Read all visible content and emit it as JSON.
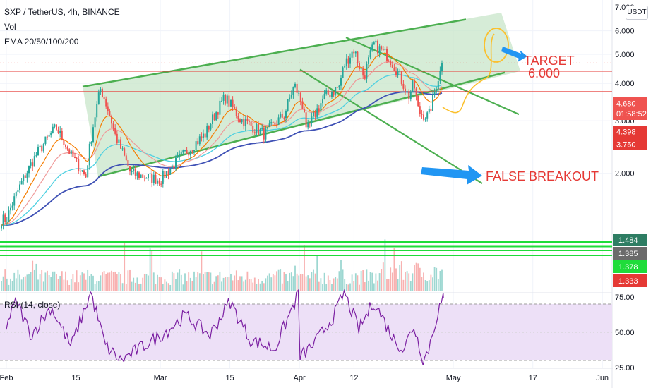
{
  "legend": {
    "symbol": "SXP / TetherUS, 4h, BINANCE",
    "vol": "Vol",
    "ema": "EMA 20/50/100/200",
    "rsi": "RSI (14, close)"
  },
  "currency_button": "USDT",
  "colors": {
    "up": "#26a69a",
    "down": "#ef5350",
    "channel": "#4caf50",
    "channel_fill": "#c8e6c9",
    "resistance": "#e53935",
    "ema20": "#f57c00",
    "ema50": "#ef9a9a",
    "ema100": "#4dd0e1",
    "ema200": "#3f51b5",
    "rsi_line": "#7b1fa2",
    "rsi_band": "#ede0f7",
    "arrow": "#2196f3",
    "annotation_text": "#e53935",
    "projection": "#fbc02d"
  },
  "chart_data": [
    {
      "type": "candlestick",
      "title": "SXP / TetherUS, 4h, BINANCE",
      "indicators": [
        "EMA 20",
        "EMA 50",
        "EMA 100",
        "EMA 200"
      ],
      "x_tick_labels": [
        "Feb",
        "15",
        "Mar",
        "15",
        "Apr",
        "12",
        "May",
        "17",
        "Jun"
      ],
      "y_tick_labels": [
        "2.000",
        "3.000",
        "4.000",
        "5.000",
        "6.000",
        "7.000"
      ],
      "y_axis": "log",
      "ylim": [
        1.55,
        7.1
      ],
      "close_path": [
        [
          "Feb 1",
          1.4
        ],
        [
          "Feb 7",
          2.3
        ],
        [
          "Feb 11",
          2.85
        ],
        [
          "Feb 14",
          2.3
        ],
        [
          "Feb 17",
          1.95
        ],
        [
          "Feb 20",
          3.85
        ],
        [
          "Feb 23",
          2.65
        ],
        [
          "Feb 26",
          2.0
        ],
        [
          "Mar 1",
          1.9
        ],
        [
          "Mar 5",
          2.25
        ],
        [
          "Mar 10",
          2.7
        ],
        [
          "Mar 14",
          3.6
        ],
        [
          "Mar 17",
          3.05
        ],
        [
          "Mar 22",
          2.7
        ],
        [
          "Mar 26",
          3.15
        ],
        [
          "Mar 28",
          3.95
        ],
        [
          "Mar 30",
          3.25
        ],
        [
          "Apr 2",
          2.65
        ],
        [
          "Apr 6",
          3.6
        ],
        [
          "Apr 9",
          3.9
        ],
        [
          "Apr 10",
          4.6
        ],
        [
          "Apr 12",
          5.2
        ],
        [
          "Apr 13",
          4.6
        ],
        [
          "Apr 14",
          4.2
        ],
        [
          "Apr 16",
          5.4
        ],
        [
          "Apr 19",
          4.9
        ],
        [
          "Apr 21",
          4.3
        ],
        [
          "Apr 23",
          3.6
        ],
        [
          "Apr 24",
          4.0
        ],
        [
          "Apr 25",
          3.2
        ],
        [
          "Apr 27",
          3.1
        ],
        [
          "Apr 28",
          3.6
        ],
        [
          "Apr 29",
          4.2
        ],
        [
          "Apr 30",
          4.68
        ]
      ],
      "last_price": 4.68,
      "horizontal_levels": [
        4.398,
        3.75
      ],
      "price_labels": [
        {
          "value": "4.680",
          "sub": "01:58:52",
          "color": "#ef5350"
        },
        {
          "value": "4.398",
          "color": "#e53935"
        },
        {
          "value": "3.750",
          "color": "#e53935"
        }
      ],
      "annotations": {
        "target_line1": "TARGET",
        "target_line2": "6.000",
        "false_breakout": "FALSE BREAKOUT"
      }
    },
    {
      "type": "bar",
      "title": "Vol",
      "levels": [
        1.484,
        1.385,
        1.378,
        1.333
      ],
      "level_labels": [
        {
          "value": "1.484",
          "color": "#2e7d63"
        },
        {
          "value": "1.385",
          "color": "#6b6b6b"
        },
        {
          "value": "1.378",
          "color": "#1fdc3a"
        },
        {
          "value": "1.333",
          "color": "#e53935"
        }
      ]
    },
    {
      "type": "line",
      "title": "RSI (14, close)",
      "y_tick_labels": [
        "25.00",
        "50.00",
        "75.00"
      ],
      "ylim": [
        22,
        82
      ],
      "band": [
        30,
        70
      ],
      "key_points": [
        [
          "Feb 1",
          55
        ],
        [
          "Feb 3",
          72
        ],
        [
          "Feb 6",
          48
        ],
        [
          "Feb 10",
          68
        ],
        [
          "Feb 14",
          40
        ],
        [
          "Feb 18",
          78
        ],
        [
          "Feb 21",
          40
        ],
        [
          "Feb 24",
          30
        ],
        [
          "Mar 2",
          50
        ],
        [
          "Mar 6",
          62
        ],
        [
          "Mar 11",
          48
        ],
        [
          "Mar 15",
          72
        ],
        [
          "Mar 19",
          45
        ],
        [
          "Mar 24",
          38
        ],
        [
          "Mar 29",
          79
        ],
        [
          "Apr 1",
          32
        ],
        [
          "Apr 4",
          42
        ],
        [
          "Apr 8",
          62
        ],
        [
          "Apr 10",
          78
        ],
        [
          "Apr 13",
          52
        ],
        [
          "Apr 16",
          72
        ],
        [
          "Apr 20",
          45
        ],
        [
          "Apr 22",
          38
        ],
        [
          "Apr 24",
          55
        ],
        [
          "Apr 26",
          30
        ],
        [
          "Apr 27",
          38
        ],
        [
          "Apr 28",
          52
        ],
        [
          "Apr 29",
          66
        ],
        [
          "Apr 30",
          74
        ]
      ],
      "last_value": 74
    }
  ]
}
